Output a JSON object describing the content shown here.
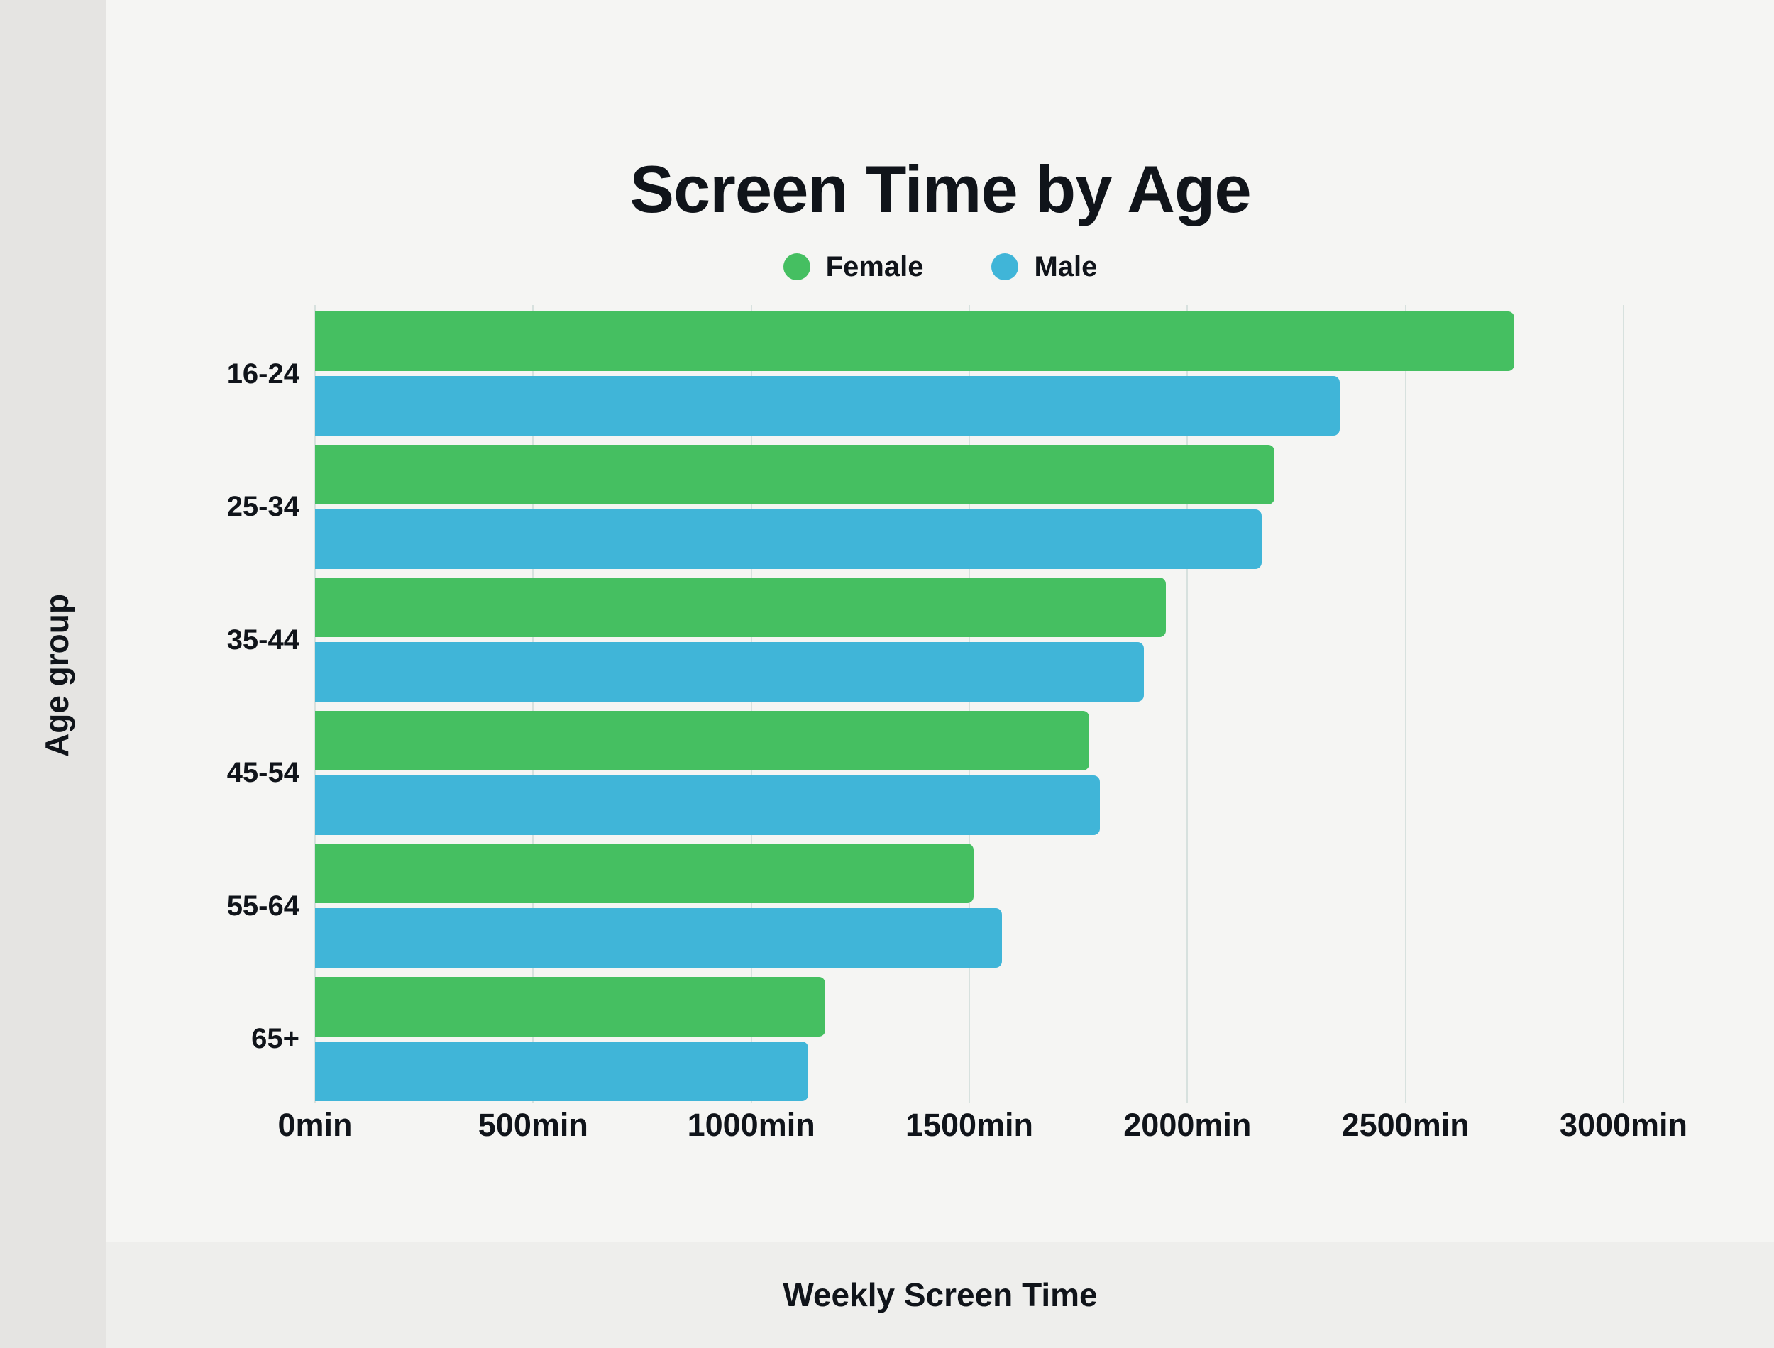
{
  "colors": {
    "female": "#45bf61",
    "male": "#40b5d8",
    "panel": "#f5f5f3",
    "outer": "#eeeeec",
    "left_strip": "#e5e4e2",
    "gridline": "#d7e1de",
    "text": "#10141a"
  },
  "chart_data": {
    "type": "bar",
    "orientation": "horizontal",
    "title": "Screen Time by Age",
    "xlabel": "Weekly Screen Time",
    "ylabel": "Age group",
    "x_unit": "min",
    "xlim": [
      0,
      3000
    ],
    "grid": true,
    "legend_position": "top",
    "categories": [
      "16-24",
      "25-34",
      "35-44",
      "45-54",
      "55-64",
      "65+"
    ],
    "series": [
      {
        "name": "Female",
        "color": "#45bf61",
        "values": [
          2750,
          2200,
          1950,
          1775,
          1510,
          1170
        ]
      },
      {
        "name": "Male",
        "color": "#40b5d8",
        "values": [
          2350,
          2170,
          1900,
          1800,
          1575,
          1130
        ]
      }
    ],
    "x_ticks": [
      {
        "value": 0,
        "label": "0min"
      },
      {
        "value": 500,
        "label": "500min"
      },
      {
        "value": 1000,
        "label": "1000min"
      },
      {
        "value": 1500,
        "label": "1500min"
      },
      {
        "value": 2000,
        "label": "2000min"
      },
      {
        "value": 2500,
        "label": "2500min"
      },
      {
        "value": 3000,
        "label": "3000min"
      }
    ]
  }
}
